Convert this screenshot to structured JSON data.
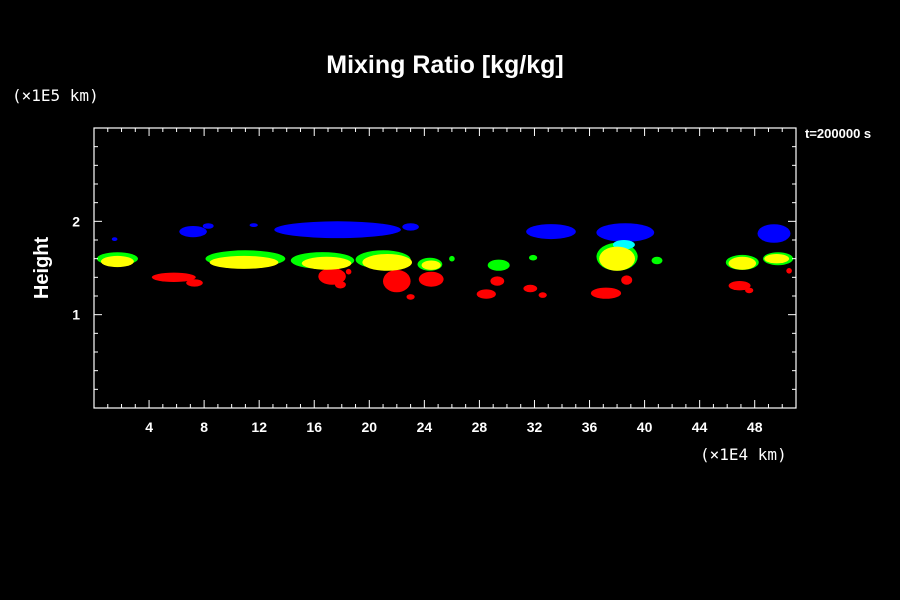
{
  "chart_data": {
    "type": "heatmap",
    "title": "Mixing Ratio [kg/kg]",
    "ylabel": "Height",
    "x_unit": "(×1E4 km)",
    "y_unit": "(×1E5 km)",
    "time_label": "t=200000 s",
    "xlim": [
      0,
      51
    ],
    "ylim": [
      0,
      3
    ],
    "x_ticks": [
      "4",
      "8",
      "12",
      "16",
      "20",
      "24",
      "28",
      "32",
      "36",
      "40",
      "44",
      "48"
    ],
    "x_tick_values": [
      4,
      8,
      12,
      16,
      20,
      24,
      28,
      32,
      36,
      40,
      44,
      48
    ],
    "y_ticks": [
      "1",
      "2"
    ],
    "y_tick_values": [
      1,
      2
    ],
    "colors": {
      "blue": "#0000ff",
      "cyan": "#00ffff",
      "green": "#00ff00",
      "yellow": "#ffff00",
      "red": "#ff0000"
    },
    "regions": [
      {
        "level": "blue",
        "x": 17.7,
        "y": 1.91,
        "rx": 4.6,
        "ry": 0.09
      },
      {
        "level": "blue",
        "x": 23.0,
        "y": 1.94,
        "rx": 0.6,
        "ry": 0.04
      },
      {
        "level": "blue",
        "x": 7.2,
        "y": 1.89,
        "rx": 1.0,
        "ry": 0.06
      },
      {
        "level": "blue",
        "x": 8.3,
        "y": 1.95,
        "rx": 0.4,
        "ry": 0.03
      },
      {
        "level": "blue",
        "x": 11.6,
        "y": 1.96,
        "rx": 0.3,
        "ry": 0.02
      },
      {
        "level": "blue",
        "x": 1.5,
        "y": 1.81,
        "rx": 0.2,
        "ry": 0.02
      },
      {
        "level": "blue",
        "x": 33.2,
        "y": 1.89,
        "rx": 1.8,
        "ry": 0.08
      },
      {
        "level": "blue",
        "x": 38.6,
        "y": 1.88,
        "rx": 2.1,
        "ry": 0.1
      },
      {
        "level": "blue",
        "x": 49.4,
        "y": 1.87,
        "rx": 1.2,
        "ry": 0.1
      },
      {
        "level": "cyan",
        "x": 38.5,
        "y": 1.75,
        "rx": 0.8,
        "ry": 0.05
      },
      {
        "level": "green",
        "x": 1.7,
        "y": 1.6,
        "rx": 1.5,
        "ry": 0.07
      },
      {
        "level": "green",
        "x": 11.0,
        "y": 1.6,
        "rx": 2.9,
        "ry": 0.09
      },
      {
        "level": "green",
        "x": 16.6,
        "y": 1.58,
        "rx": 2.3,
        "ry": 0.09
      },
      {
        "level": "green",
        "x": 21.0,
        "y": 1.59,
        "rx": 2.0,
        "ry": 0.1
      },
      {
        "level": "green",
        "x": 24.4,
        "y": 1.54,
        "rx": 0.9,
        "ry": 0.07
      },
      {
        "level": "green",
        "x": 26.0,
        "y": 1.6,
        "rx": 0.2,
        "ry": 0.03
      },
      {
        "level": "green",
        "x": 29.4,
        "y": 1.53,
        "rx": 0.8,
        "ry": 0.06
      },
      {
        "level": "green",
        "x": 31.9,
        "y": 1.61,
        "rx": 0.3,
        "ry": 0.03
      },
      {
        "level": "green",
        "x": 38.0,
        "y": 1.62,
        "rx": 1.5,
        "ry": 0.15
      },
      {
        "level": "green",
        "x": 40.9,
        "y": 1.58,
        "rx": 0.4,
        "ry": 0.04
      },
      {
        "level": "green",
        "x": 47.1,
        "y": 1.56,
        "rx": 1.2,
        "ry": 0.08
      },
      {
        "level": "green",
        "x": 49.7,
        "y": 1.6,
        "rx": 1.1,
        "ry": 0.07
      },
      {
        "level": "yellow",
        "x": 1.7,
        "y": 1.57,
        "rx": 1.2,
        "ry": 0.06
      },
      {
        "level": "yellow",
        "x": 10.9,
        "y": 1.56,
        "rx": 2.5,
        "ry": 0.07
      },
      {
        "level": "yellow",
        "x": 16.9,
        "y": 1.55,
        "rx": 1.8,
        "ry": 0.07
      },
      {
        "level": "yellow",
        "x": 21.3,
        "y": 1.56,
        "rx": 1.8,
        "ry": 0.09
      },
      {
        "level": "yellow",
        "x": 24.5,
        "y": 1.53,
        "rx": 0.7,
        "ry": 0.05
      },
      {
        "level": "yellow",
        "x": 38.0,
        "y": 1.6,
        "rx": 1.3,
        "ry": 0.13
      },
      {
        "level": "yellow",
        "x": 47.1,
        "y": 1.55,
        "rx": 1.0,
        "ry": 0.07
      },
      {
        "level": "yellow",
        "x": 49.6,
        "y": 1.6,
        "rx": 0.9,
        "ry": 0.05
      },
      {
        "level": "red",
        "x": 5.8,
        "y": 1.4,
        "rx": 1.6,
        "ry": 0.05
      },
      {
        "level": "red",
        "x": 7.3,
        "y": 1.34,
        "rx": 0.6,
        "ry": 0.04
      },
      {
        "level": "red",
        "x": 17.3,
        "y": 1.41,
        "rx": 1.0,
        "ry": 0.09
      },
      {
        "level": "red",
        "x": 17.9,
        "y": 1.32,
        "rx": 0.4,
        "ry": 0.04
      },
      {
        "level": "red",
        "x": 18.5,
        "y": 1.46,
        "rx": 0.2,
        "ry": 0.03
      },
      {
        "level": "red",
        "x": 22.0,
        "y": 1.36,
        "rx": 1.0,
        "ry": 0.12
      },
      {
        "level": "red",
        "x": 23.0,
        "y": 1.19,
        "rx": 0.3,
        "ry": 0.03
      },
      {
        "level": "red",
        "x": 24.5,
        "y": 1.38,
        "rx": 0.9,
        "ry": 0.08
      },
      {
        "level": "red",
        "x": 28.5,
        "y": 1.22,
        "rx": 0.7,
        "ry": 0.05
      },
      {
        "level": "red",
        "x": 29.3,
        "y": 1.36,
        "rx": 0.5,
        "ry": 0.05
      },
      {
        "level": "red",
        "x": 31.7,
        "y": 1.28,
        "rx": 0.5,
        "ry": 0.04
      },
      {
        "level": "red",
        "x": 32.6,
        "y": 1.21,
        "rx": 0.3,
        "ry": 0.03
      },
      {
        "level": "red",
        "x": 37.2,
        "y": 1.23,
        "rx": 1.1,
        "ry": 0.06
      },
      {
        "level": "red",
        "x": 38.7,
        "y": 1.37,
        "rx": 0.4,
        "ry": 0.05
      },
      {
        "level": "red",
        "x": 46.9,
        "y": 1.31,
        "rx": 0.8,
        "ry": 0.05
      },
      {
        "level": "red",
        "x": 47.6,
        "y": 1.26,
        "rx": 0.3,
        "ry": 0.03
      },
      {
        "level": "red",
        "x": 50.5,
        "y": 1.47,
        "rx": 0.2,
        "ry": 0.03
      }
    ]
  }
}
